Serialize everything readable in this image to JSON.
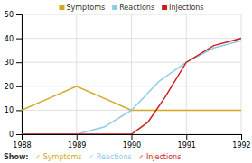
{
  "chart_data": {
    "type": "line",
    "title": "",
    "xlim": [
      1988,
      1992
    ],
    "ylim": [
      0,
      50
    ],
    "xticks": [
      1988,
      1989,
      1990,
      1991,
      1992
    ],
    "yticks": [
      0,
      10,
      20,
      30,
      40,
      50
    ],
    "grid": true,
    "legend": "top",
    "series": [
      {
        "name": "Symptoms",
        "color": "#d4a820",
        "x": [
          1988,
          1988.5,
          1989,
          1989.5,
          1990,
          1991,
          1992
        ],
        "values": [
          10,
          15,
          20,
          15,
          10,
          10,
          10
        ]
      },
      {
        "name": "Reactions",
        "color": "#90c8e8",
        "x": [
          1988,
          1989,
          1989.5,
          1990,
          1990.5,
          1991,
          1991.5,
          1992
        ],
        "values": [
          0,
          0,
          3,
          10,
          22,
          30,
          36,
          39
        ]
      },
      {
        "name": "Injections",
        "color": "#cc2020",
        "x": [
          1988,
          1989,
          1989.9,
          1990.0,
          1990.3,
          1990.6,
          1991.0,
          1991.5,
          1992
        ],
        "values": [
          0,
          0,
          0,
          0,
          5,
          15,
          30,
          37,
          40
        ]
      }
    ],
    "annotations": [
      {
        "text": "Show:"
      },
      {
        "text": "✓ Symptoms",
        "color": "#d4a820"
      },
      {
        "text": "✓ Reactions",
        "color": "#90c8e8"
      },
      {
        "text": "✓ Injections",
        "color": "#cc2020"
      }
    ]
  }
}
